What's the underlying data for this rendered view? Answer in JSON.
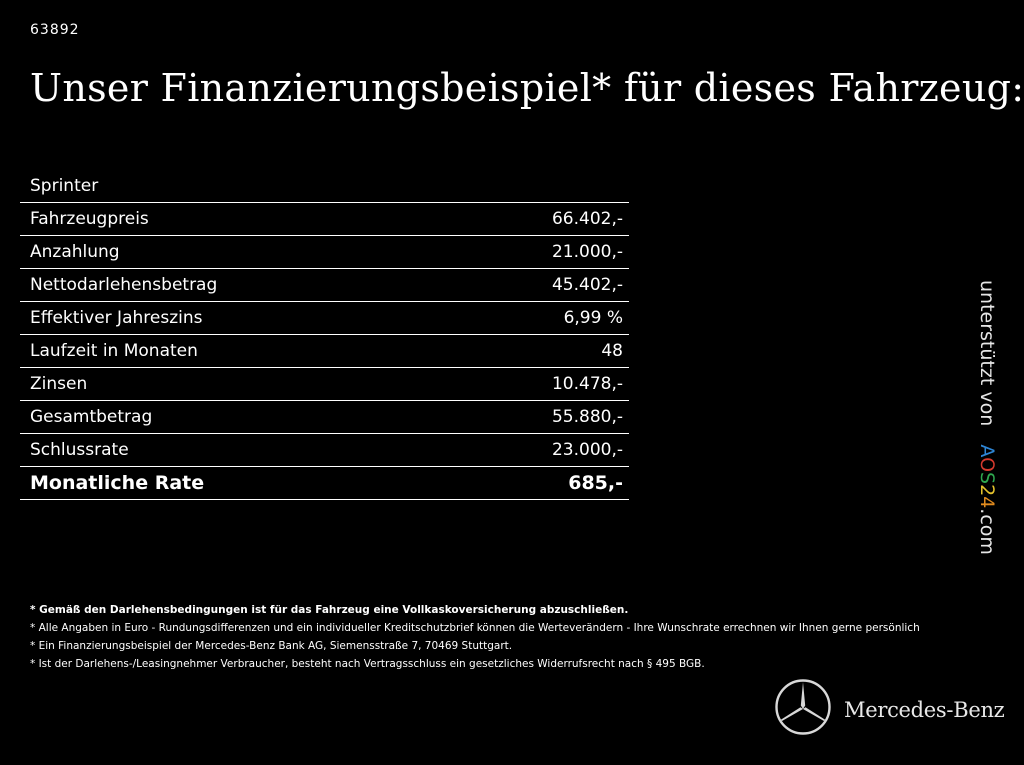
{
  "reference_number": "63892",
  "headline": "Unser Finanzierungsbeispiel* für dieses Fahrzeug:",
  "finance_table": {
    "model": "Sprinter",
    "rows": [
      {
        "label": "Fahrzeugpreis",
        "value": "66.402,-"
      },
      {
        "label": "Anzahlung",
        "value": "21.000,-"
      },
      {
        "label": "Nettodarlehensbetrag",
        "value": "45.402,-"
      },
      {
        "label": "Effektiver Jahreszins",
        "value": "6,99 %"
      },
      {
        "label": "Laufzeit in Monaten",
        "value": "48"
      },
      {
        "label": "Zinsen",
        "value": "10.478,-"
      },
      {
        "label": "Gesamtbetrag",
        "value": "55.880,-"
      },
      {
        "label": "Schlussrate",
        "value": "23.000,-"
      }
    ],
    "total": {
      "label": "Monatliche Rate",
      "value": "685,-"
    }
  },
  "footnotes": [
    "* Gemäß den Darlehensbedingungen ist für das Fahrzeug eine Vollkaskoversicherung abzuschließen.",
    "* Alle Angaben in Euro - Rundungsdifferenzen und ein individueller Kreditschutzbrief können die Werteverändern - Ihre Wunschrate errechnen wir Ihnen gerne persönlich",
    "* Ein Finanzierungsbeispiel der Mercedes-Benz Bank AG, Siemensstraße 7, 70469 Stuttgart.",
    "* Ist der Darlehens-/Leasingnehmer Verbraucher, besteht nach Vertragsschluss ein gesetzliches Widerrufsrecht nach § 495 BGB."
  ],
  "sidebar": {
    "supported_by": "unterstützt von",
    "aos_a": "A",
    "aos_o": "O",
    "aos_s": "S",
    "aos_2": "2",
    "aos_4": "4",
    "aos_tld": ".com"
  },
  "brand": {
    "name": "Mercedes-Benz",
    "logo_icon": "mercedes-star-icon"
  },
  "colors": {
    "background": "#000000",
    "text": "#ffffff"
  }
}
